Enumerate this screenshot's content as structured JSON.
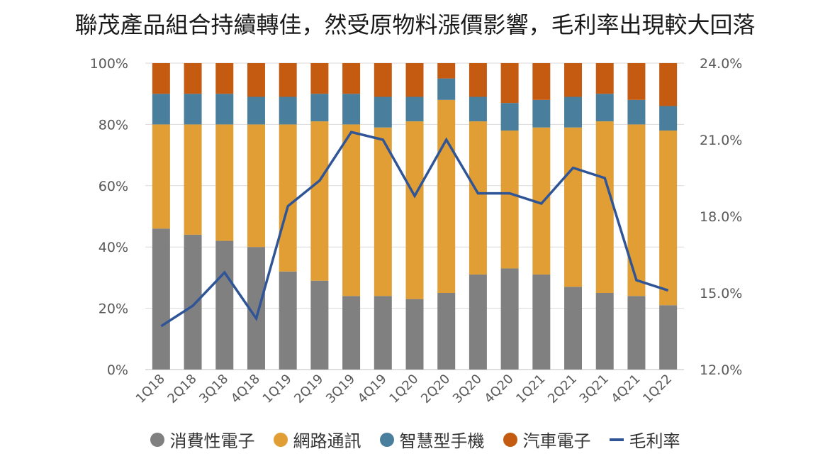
{
  "chart_data": {
    "type": "bar",
    "stacked": true,
    "title": "聯茂產品組合持續轉佳，然受原物料漲價影響，毛利率出現較大回落",
    "categories": [
      "1Q18",
      "2Q18",
      "3Q18",
      "4Q18",
      "1Q19",
      "2Q19",
      "3Q19",
      "4Q19",
      "1Q20",
      "2Q20",
      "3Q20",
      "4Q20",
      "1Q21",
      "2Q21",
      "3Q21",
      "4Q21",
      "1Q22"
    ],
    "series": [
      {
        "name": "消費性電子",
        "color": "#808080",
        "values": [
          46,
          44,
          42,
          40,
          32,
          29,
          24,
          24,
          23,
          25,
          31,
          33,
          31,
          27,
          25,
          24,
          21
        ]
      },
      {
        "name": "網路通訊",
        "color": "#E09E35",
        "values": [
          34,
          36,
          38,
          40,
          48,
          52,
          56,
          55,
          58,
          63,
          50,
          45,
          48,
          52,
          56,
          56,
          57
        ]
      },
      {
        "name": "智慧型手機",
        "color": "#4A7E9D",
        "values": [
          10,
          10,
          10,
          9,
          9,
          9,
          10,
          10,
          8,
          7,
          8,
          9,
          9,
          10,
          9,
          8,
          8
        ]
      },
      {
        "name": "汽車電子",
        "color": "#C55A11",
        "values": [
          10,
          10,
          10,
          11,
          11,
          10,
          10,
          11,
          11,
          5,
          11,
          13,
          12,
          11,
          10,
          12,
          14
        ]
      }
    ],
    "line_series": {
      "name": "毛利率",
      "color": "#2F5597",
      "axis": "right",
      "values": [
        13.7,
        14.5,
        15.8,
        14.0,
        18.4,
        19.4,
        21.3,
        21.0,
        18.8,
        21.0,
        18.9,
        18.9,
        18.5,
        19.9,
        19.5,
        15.5,
        15.1
      ]
    },
    "y_left": {
      "min": 0,
      "max": 100,
      "ticks": [
        0,
        20,
        40,
        60,
        80,
        100
      ],
      "tick_labels": [
        "0%",
        "20%",
        "40%",
        "60%",
        "80%",
        "100%"
      ]
    },
    "y_right": {
      "min": 12,
      "max": 24,
      "ticks": [
        12,
        15,
        18,
        21,
        24
      ],
      "tick_labels": [
        "12.0%",
        "15.0%",
        "18.0%",
        "21.0%",
        "24.0%"
      ]
    },
    "grid": true,
    "legend_position": "bottom",
    "xlabel": "",
    "ylabel": ""
  }
}
